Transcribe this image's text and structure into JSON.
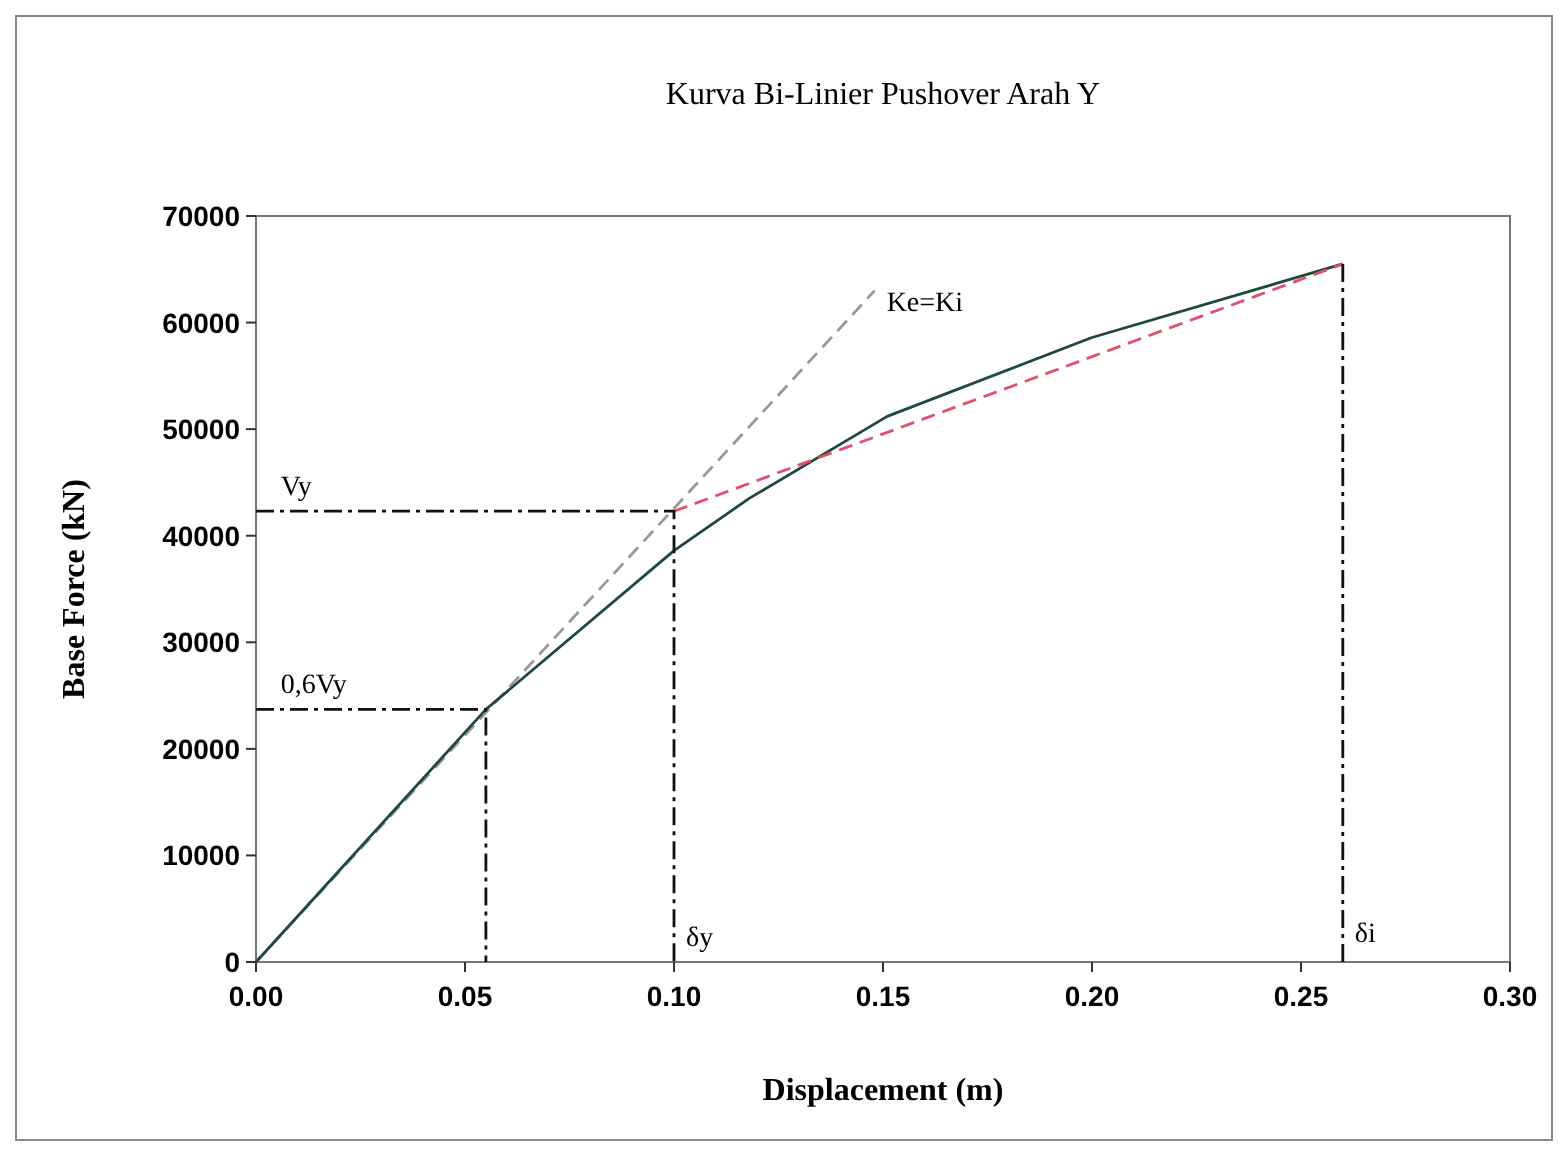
{
  "chart_data": {
    "type": "line",
    "title": "Kurva Bi-Linier Pushover Arah Y",
    "xlabel": "Displacement (m)",
    "ylabel": "Base Force (kN)",
    "xlim": [
      0,
      0.3
    ],
    "xticks": [
      {
        "value": 0,
        "label": "0.00"
      },
      {
        "value": 0.05,
        "label": "0.05"
      },
      {
        "value": 0.1,
        "label": "0.10"
      },
      {
        "value": 0.15,
        "label": "0.15"
      },
      {
        "value": 0.2,
        "label": "0.20"
      },
      {
        "value": 0.25,
        "label": "0.25"
      },
      {
        "value": 0.3,
        "label": "0.30"
      }
    ],
    "ylim": [
      0,
      70000
    ],
    "yticks": [
      0,
      10000,
      20000,
      30000,
      40000,
      50000,
      60000,
      70000
    ],
    "grid": false,
    "marker": "none",
    "series": [
      {
        "color": "#999999",
        "line_style": "dashed",
        "x": [
          0,
          0.148
        ],
        "values": [
          0,
          63000
        ]
      },
      {
        "color": "#1e4a3c",
        "line_style": "solid",
        "x": [
          0,
          0.055,
          0.1,
          0.118,
          0.151,
          0.2,
          0.26
        ],
        "values": [
          0,
          23700,
          38600,
          43500,
          51200,
          58600,
          65500
        ]
      },
      {
        "color": "#e0506a",
        "line_style": "dashed",
        "x": [
          0.1,
          0.26
        ],
        "values": [
          42300,
          65500
        ]
      },
      {
        "color": "#111111",
        "line_style": "dashdot",
        "x": [
          0,
          0.1,
          0.1
        ],
        "values": [
          42300,
          42300,
          0
        ]
      },
      {
        "color": "#111111",
        "line_style": "dashdot",
        "x": [
          0,
          0.055,
          0.055
        ],
        "values": [
          23700,
          23700,
          0
        ]
      },
      {
        "color": "#111111",
        "line_style": "dashdot",
        "x": [
          0.26,
          0.26
        ],
        "values": [
          65500,
          0
        ]
      }
    ],
    "annotations": [
      {
        "text": "Vy",
        "x": 0.004,
        "y": 42300
      },
      {
        "text": "0,6Vy",
        "x": 0.004,
        "y": 23700
      },
      {
        "text": "δy",
        "x": 0.1,
        "y": 0
      },
      {
        "text": "δi",
        "x": 0.26,
        "y": 0
      },
      {
        "text": "Ke=Ki",
        "x": 0.148,
        "y": 63000
      }
    ]
  }
}
